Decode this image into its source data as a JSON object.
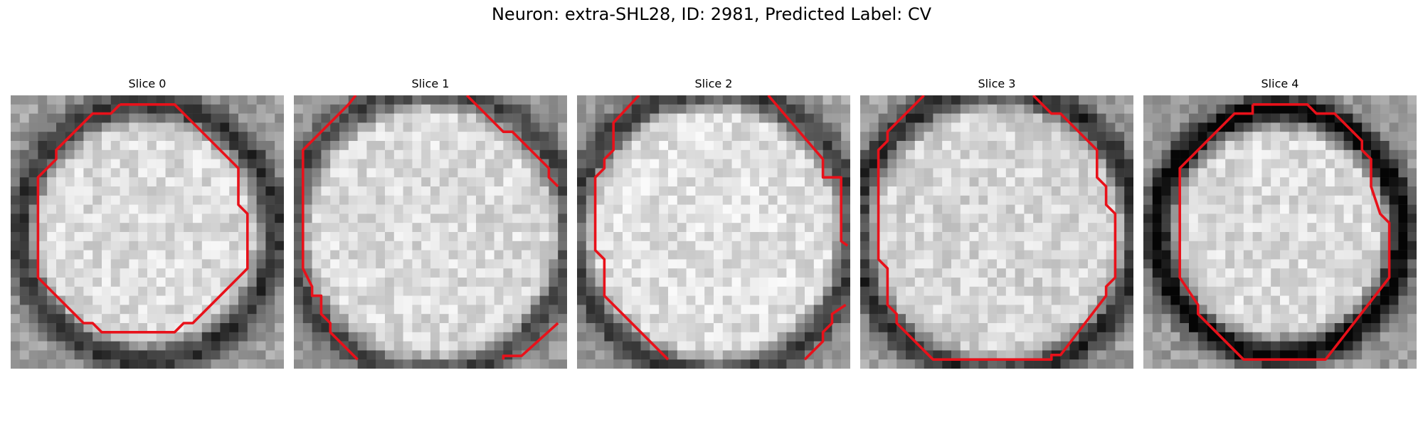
{
  "figure": {
    "title": "Neuron: extra-SHL28, ID: 2981, Predicted Label: CV",
    "contour_color": "#e8111a"
  },
  "panels": [
    {
      "title": "Slice 0",
      "center_brightness": 0.86,
      "ring_darkness": 0.42,
      "ring_radius": 0.47,
      "noise_seed": 11
    },
    {
      "title": "Slice 1",
      "center_brightness": 0.86,
      "ring_darkness": 0.35,
      "ring_radius": 0.52,
      "noise_seed": 23
    },
    {
      "title": "Slice 2",
      "center_brightness": 0.88,
      "ring_darkness": 0.38,
      "ring_radius": 0.52,
      "noise_seed": 37
    },
    {
      "title": "Slice 3",
      "center_brightness": 0.84,
      "ring_darkness": 0.45,
      "ring_radius": 0.52,
      "noise_seed": 41
    },
    {
      "title": "Slice 4",
      "center_brightness": 0.86,
      "ring_darkness": 0.62,
      "ring_radius": 0.45,
      "noise_seed": 53
    }
  ]
}
